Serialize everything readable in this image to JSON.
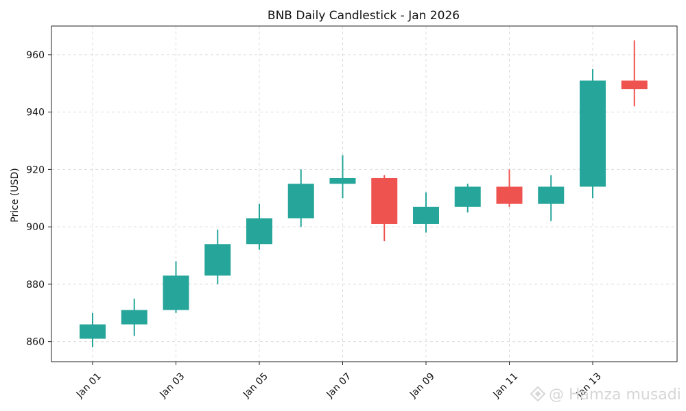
{
  "chart_data": {
    "type": "candlestick",
    "title": "BNB Daily Candlestick - Jan 2026",
    "xlabel": "",
    "ylabel": "Price (USD)",
    "ylim": [
      853,
      970
    ],
    "yticks": [
      860,
      880,
      900,
      920,
      940,
      960
    ],
    "grid": true,
    "x_tick_labels": [
      "Jan 01",
      "Jan 03",
      "Jan 05",
      "Jan 07",
      "Jan 09",
      "Jan 11",
      "Jan 13"
    ],
    "x_tick_indices": [
      0,
      2,
      4,
      6,
      8,
      10,
      12
    ],
    "colors": {
      "up": "#26a69a",
      "down": "#ef5350"
    },
    "candles": [
      {
        "date": "Jan 01",
        "open": 861,
        "high": 870,
        "low": 858,
        "close": 866
      },
      {
        "date": "Jan 02",
        "open": 866,
        "high": 875,
        "low": 862,
        "close": 871
      },
      {
        "date": "Jan 03",
        "open": 871,
        "high": 888,
        "low": 870,
        "close": 883
      },
      {
        "date": "Jan 04",
        "open": 883,
        "high": 899,
        "low": 880,
        "close": 894
      },
      {
        "date": "Jan 05",
        "open": 894,
        "high": 908,
        "low": 892,
        "close": 903
      },
      {
        "date": "Jan 06",
        "open": 903,
        "high": 920,
        "low": 900,
        "close": 915
      },
      {
        "date": "Jan 07",
        "open": 915,
        "high": 925,
        "low": 910,
        "close": 917
      },
      {
        "date": "Jan 08",
        "open": 917,
        "high": 918,
        "low": 895,
        "close": 901
      },
      {
        "date": "Jan 09",
        "open": 901,
        "high": 912,
        "low": 898,
        "close": 907
      },
      {
        "date": "Jan 10",
        "open": 907,
        "high": 915,
        "low": 905,
        "close": 914
      },
      {
        "date": "Jan 11",
        "open": 914,
        "high": 920,
        "low": 907,
        "close": 908
      },
      {
        "date": "Jan 12",
        "open": 908,
        "high": 918,
        "low": 902,
        "close": 914
      },
      {
        "date": "Jan 13",
        "open": 914,
        "high": 955,
        "low": 910,
        "close": 951
      },
      {
        "date": "Jan 14",
        "open": 951,
        "high": 965,
        "low": 942,
        "close": 948
      }
    ]
  },
  "watermark": "@ Hamza musadi"
}
